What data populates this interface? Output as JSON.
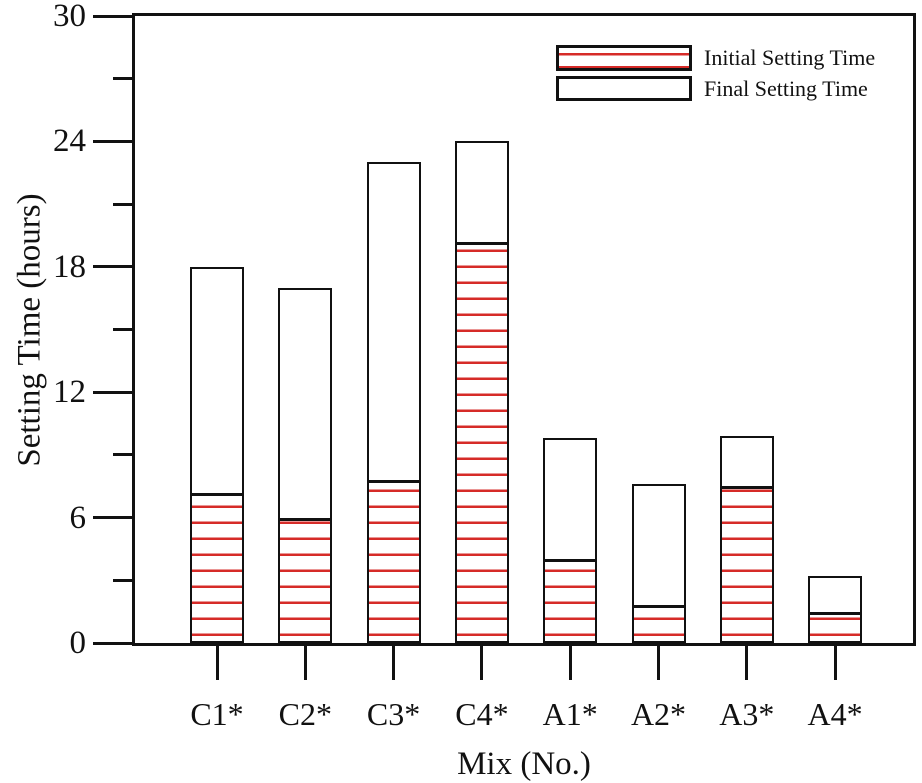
{
  "chart_data": {
    "type": "bar",
    "title": "",
    "xlabel": "Mix (No.)",
    "ylabel": "Setting Time (hours)",
    "categories": [
      "C1*",
      "C2*",
      "C3*",
      "C4*",
      "A1*",
      "A2*",
      "A3*",
      "A4*"
    ],
    "series": [
      {
        "name": "Initial Setting Time",
        "style": "red-horizontal-hatch",
        "values": [
          7.2,
          6.0,
          7.8,
          19.2,
          4.0,
          1.8,
          7.5,
          1.5
        ]
      },
      {
        "name": "Final Setting Time",
        "style": "white-black-outline",
        "values": [
          18.0,
          17.0,
          23.0,
          24.0,
          9.8,
          7.6,
          9.9,
          3.2
        ]
      }
    ],
    "bar_arrangement": "overlaid",
    "ylim": [
      0,
      30
    ],
    "yticks_major": [
      0,
      6,
      12,
      18,
      24,
      30
    ],
    "yticks_minor": [
      3,
      9,
      15,
      21,
      27
    ],
    "grid": false,
    "legend_position": "top-right-inside",
    "colors": {
      "hatch_red": "#d62b28",
      "outline": "#111111",
      "background": "#ffffff"
    }
  }
}
